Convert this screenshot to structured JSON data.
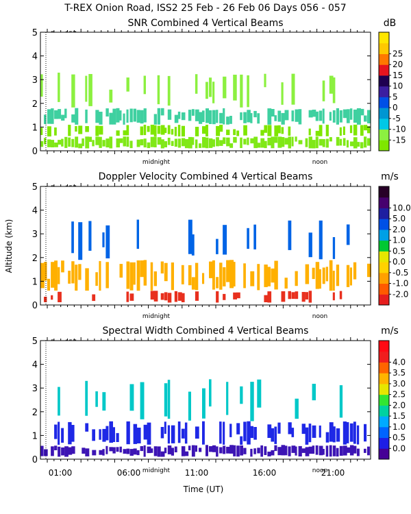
{
  "header": {
    "title": "T-REX Onion Road, ISS2  25 Feb - 26 Feb 06 Days 056 - 057"
  },
  "chart_data": [
    {
      "type": "heatmap",
      "title": "SNR Combined 4 Vertical Beams",
      "unit": "dB",
      "ylabel": "",
      "ylim": [
        0,
        5
      ],
      "yticks": [
        "0",
        "1",
        "2",
        "3",
        "4",
        "5"
      ],
      "day_marker": "Day 057",
      "midnight_label": "midnight",
      "noon_label": "noon",
      "xticks": [],
      "xlabel": "",
      "colorbar": {
        "labels": [
          "-15",
          "-10",
          "-5",
          "0",
          "5",
          "10",
          "15",
          "20",
          "25"
        ],
        "colors": [
          "#7fe600",
          "#8cf040",
          "#00c8e6",
          "#0096d2",
          "#0050e6",
          "#3c1ea0",
          "#1e0050",
          "#e6141e",
          "#ff7800",
          "#ffc800",
          "#ffe600"
        ]
      },
      "layers": [
        {
          "altitude_km": [
            0.1,
            0.6
          ],
          "color": "#80e817",
          "density": 0.92
        },
        {
          "altitude_km": [
            0.6,
            1.1
          ],
          "color": "#7fe600",
          "density": 0.55
        },
        {
          "altitude_km": [
            1.1,
            1.8
          ],
          "color": "#3fd0a0",
          "density": 0.75
        },
        {
          "altitude_km": [
            1.8,
            3.3
          ],
          "color": "#8cf040",
          "density": 0.25
        }
      ]
    },
    {
      "type": "heatmap",
      "title": "Doppler Velocity Combined 4 Vertical Beams",
      "unit": "m/s",
      "ylabel": "Altitude (km)",
      "ylim": [
        0,
        5
      ],
      "yticks": [
        "0",
        "1",
        "2",
        "3",
        "4",
        "5"
      ],
      "day_marker": "Day 057",
      "midnight_label": "midnight",
      "noon_label": "noon",
      "xticks": [],
      "xlabel": "",
      "colorbar": {
        "labels": [
          "-2.0",
          "-1.0",
          "-0.5",
          "0.0",
          "0.5",
          "1.0",
          "2.0",
          "5.0",
          "10.0"
        ],
        "colors": [
          "#e61e1e",
          "#ff5a00",
          "#ffa000",
          "#ffd200",
          "#e6e600",
          "#00c832",
          "#00a0e6",
          "#0050e6",
          "#1e1ea0",
          "#46006e",
          "#280028"
        ]
      },
      "layers": [
        {
          "altitude_km": [
            0.1,
            0.6
          ],
          "color": "#e8301e",
          "density": 0.35
        },
        {
          "altitude_km": [
            0.6,
            1.9
          ],
          "color": "#ffb000",
          "density": 0.7
        },
        {
          "altitude_km": [
            1.9,
            3.6
          ],
          "color": "#0064e6",
          "density": 0.2
        }
      ]
    },
    {
      "type": "heatmap",
      "title": "Spectral Width Combined 4 Vertical Beams",
      "unit": "m/s",
      "ylabel": "",
      "ylim": [
        0,
        5
      ],
      "yticks": [
        "0",
        "1",
        "2",
        "3",
        "4",
        "5"
      ],
      "day_marker": "Day 057",
      "midnight_label": "midnight",
      "noon_label": "noon",
      "xticks": [
        "01:00",
        "06:00",
        "11:00",
        "16:00",
        "21:00"
      ],
      "xlabel": "Time (UT)",
      "colorbar": {
        "labels": [
          "0.0",
          "0.5",
          "1.0",
          "1.5",
          "2.0",
          "2.5",
          "3.0",
          "3.5",
          "4.0"
        ],
        "colors": [
          "#460096",
          "#1e1ee6",
          "#0064ff",
          "#00aaff",
          "#00d2a0",
          "#32e632",
          "#e6e600",
          "#ffb400",
          "#ff6400",
          "#f01e1e",
          "#ff0a14"
        ]
      },
      "layers": [
        {
          "altitude_km": [
            0.1,
            0.6
          ],
          "color": "#3c14b4",
          "density": 0.9
        },
        {
          "altitude_km": [
            0.6,
            1.6
          ],
          "color": "#1e28e6",
          "density": 0.6
        },
        {
          "altitude_km": [
            1.6,
            3.4
          ],
          "color": "#00c8c8",
          "density": 0.25
        }
      ]
    }
  ]
}
